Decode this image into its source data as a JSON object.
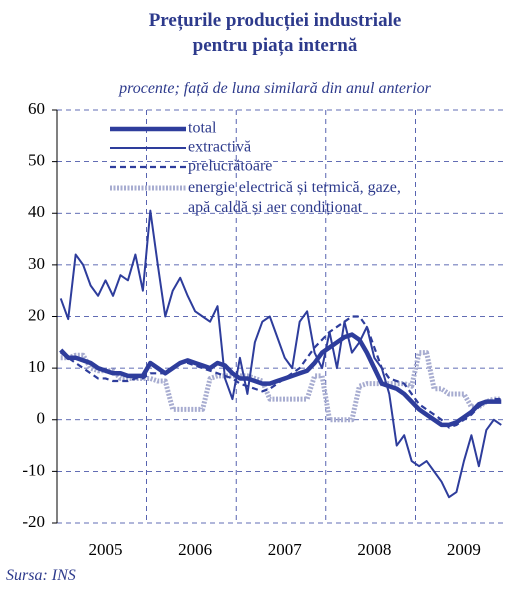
{
  "chart_data": {
    "type": "line",
    "title": [
      "Prețurile producției industriale",
      "pentru piața internă"
    ],
    "subtitle": "procente; față de luna similară din anul anterior",
    "source": "Sursa: INS",
    "categories": [
      null,
      null,
      null,
      null,
      null,
      null,
      "2005",
      null,
      null,
      null,
      null,
      null,
      null,
      null,
      null,
      null,
      null,
      null,
      "2006",
      null,
      null,
      null,
      null,
      null,
      null,
      null,
      null,
      null,
      null,
      null,
      "2007",
      null,
      null,
      null,
      null,
      null,
      null,
      null,
      null,
      null,
      null,
      null,
      "2008",
      null,
      null,
      null,
      null,
      null,
      null,
      null,
      null,
      null,
      null,
      null,
      "2009",
      null,
      null,
      null,
      null,
      null
    ],
    "series": [
      {
        "name": "total",
        "color": "#2e3d9c",
        "style": "thick",
        "values": [
          13.5,
          12,
          12,
          11.5,
          11,
          10,
          9.5,
          9,
          9,
          8.5,
          8.5,
          8.5,
          11,
          10,
          9,
          10,
          11,
          11.5,
          11,
          10.5,
          10,
          11,
          10.5,
          9,
          8,
          8,
          7.5,
          7,
          7,
          7.5,
          8,
          8.5,
          9,
          9.5,
          11,
          13,
          14,
          15,
          16,
          16.5,
          15.5,
          13,
          10,
          7,
          6.5,
          6,
          5,
          3.5,
          2,
          1,
          0,
          -1,
          -1,
          -0.5,
          0.5,
          1.5,
          3,
          3.5,
          3.5,
          3.5
        ]
      },
      {
        "name": "extractivă",
        "color": "#2e3d9c",
        "style": "thin",
        "values": [
          23.5,
          19.5,
          32,
          30,
          26,
          24,
          27,
          24,
          28,
          27,
          32,
          25,
          40.5,
          30,
          20,
          25,
          27.5,
          24,
          21,
          20,
          19,
          22,
          8,
          4,
          12,
          5,
          15,
          19,
          20,
          16,
          12,
          10,
          19,
          21,
          13,
          10,
          17,
          10,
          19,
          13,
          15,
          18,
          12,
          10,
          5,
          -5,
          -3,
          -8,
          -9,
          -8,
          -10,
          -12,
          -15,
          -14,
          -8,
          -3,
          -9,
          -2,
          0,
          -1
        ]
      },
      {
        "name": "prelucrătoare",
        "color": "#2e3d9c",
        "style": "dashed",
        "values": [
          13,
          12,
          11,
          10,
          9,
          8,
          8,
          7.5,
          7.5,
          7.5,
          8,
          8,
          9,
          9,
          9,
          10,
          11,
          11,
          10.5,
          10,
          9.5,
          9,
          8.5,
          8,
          7,
          6.5,
          6,
          5.5,
          6,
          7,
          8,
          9,
          10,
          12,
          14,
          15.5,
          17,
          18,
          19,
          20,
          20,
          18,
          14,
          10,
          8,
          7.5,
          7,
          5,
          3,
          2,
          1,
          0,
          -1.5,
          -1,
          0,
          1,
          2.5,
          3.5,
          4,
          4
        ]
      },
      {
        "name": "energie electrică și termică, gaze, apă caldă și aer condiționat",
        "color": "#a7acd0",
        "style": "dotted",
        "values": [
          12,
          12,
          12.5,
          12.5,
          10,
          9.5,
          9.5,
          9.5,
          8,
          8,
          8,
          8,
          8,
          7.5,
          7.5,
          2,
          2,
          2,
          2,
          2,
          8,
          8.5,
          8.5,
          8.5,
          8.5,
          8.5,
          8,
          7.5,
          4,
          4,
          4,
          4,
          4,
          4,
          8.5,
          8.5,
          0,
          0,
          0,
          0,
          6.5,
          7,
          7,
          7,
          7,
          7,
          7,
          6.5,
          13,
          13,
          6,
          6,
          5,
          5,
          5,
          2.5,
          2.5,
          3.5,
          4,
          4
        ]
      }
    ],
    "ylim": [
      -20,
      60
    ],
    "yticks": [
      -20,
      -10,
      0,
      10,
      20,
      30,
      40,
      50,
      60
    ],
    "grid": true
  }
}
